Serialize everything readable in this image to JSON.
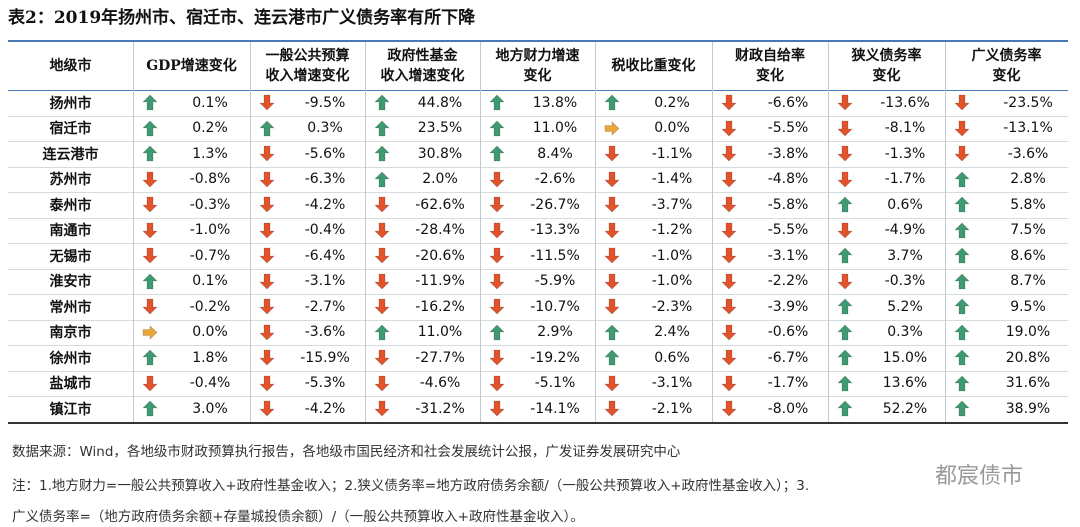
{
  "header": {
    "title": "表2：2019年扬州市、宿迁市、连云港市广义债务率有所下降"
  },
  "table": {
    "columns": [
      "地级市",
      "GDP增速变化",
      "一般公共预算\n收入增速变化",
      "政府性基金\n收入增速变化",
      "地方财力增速\n变化",
      "税收比重变化",
      "财政自给率\n变化",
      "狭义债务率\n变化",
      "广义债务率\n变化"
    ],
    "rows": [
      [
        "扬州市",
        "0.1%",
        "-9.5%",
        "44.8%",
        "13.8%",
        "0.2%",
        "-6.6%",
        "-13.6%",
        "-23.5%"
      ],
      [
        "宿迁市",
        "0.2%",
        "0.3%",
        "23.5%",
        "11.0%",
        "0.0%",
        "-5.5%",
        "-8.1%",
        "-13.1%"
      ],
      [
        "连云港市",
        "1.3%",
        "-5.6%",
        "30.8%",
        "8.4%",
        "-1.1%",
        "-3.8%",
        "-1.3%",
        "-3.6%"
      ],
      [
        "苏州市",
        "-0.8%",
        "-6.3%",
        "2.0%",
        "-2.6%",
        "-1.4%",
        "-4.8%",
        "-1.7%",
        "2.8%"
      ],
      [
        "泰州市",
        "-0.3%",
        "-4.2%",
        "-62.6%",
        "-26.7%",
        "-3.7%",
        "-5.8%",
        "0.6%",
        "5.8%"
      ],
      [
        "南通市",
        "-1.0%",
        "-0.4%",
        "-28.4%",
        "-13.3%",
        "-1.2%",
        "-5.5%",
        "-4.9%",
        "7.5%"
      ],
      [
        "无锡市",
        "-0.7%",
        "-6.4%",
        "-20.6%",
        "-11.5%",
        "-1.0%",
        "-3.1%",
        "3.7%",
        "8.6%"
      ],
      [
        "淮安市",
        "0.1%",
        "-3.1%",
        "-11.9%",
        "-5.9%",
        "-1.0%",
        "-2.2%",
        "-0.3%",
        "8.7%"
      ],
      [
        "常州市",
        "-0.2%",
        "-2.7%",
        "-16.2%",
        "-10.7%",
        "-2.3%",
        "-3.9%",
        "5.2%",
        "9.5%"
      ],
      [
        "南京市",
        "0.0%",
        "-3.6%",
        "11.0%",
        "2.9%",
        "2.4%",
        "-0.6%",
        "0.3%",
        "19.0%"
      ],
      [
        "徐州市",
        "1.8%",
        "-15.9%",
        "-27.7%",
        "-19.2%",
        "0.6%",
        "-6.7%",
        "15.0%",
        "20.8%"
      ],
      [
        "盐城市",
        "-0.4%",
        "-5.3%",
        "-4.6%",
        "-5.1%",
        "-3.1%",
        "-1.7%",
        "13.6%",
        "31.6%"
      ],
      [
        "镇江市",
        "3.0%",
        "-4.2%",
        "-31.2%",
        "-14.1%",
        "-2.1%",
        "-8.0%",
        "52.2%",
        "38.9%"
      ]
    ]
  },
  "footer": {
    "source": "数据来源：Wind，各地级市财政预算执行报告，各地级市国民经济和社会发展统计公报，广发证券发展研究中心",
    "notes": [
      "注：1.地方财力=一般公共预算收入+政府性基金收入；2.狭义债务率=地方政府债务余额/（一般公共预算收入+政府性基金收入）；3.",
      "广义债务率=（地方政府债务余额+存量城投债余额）/（一般公共预算收入+政府性基金收入）。"
    ],
    "watermark": "都宸债市"
  }
}
